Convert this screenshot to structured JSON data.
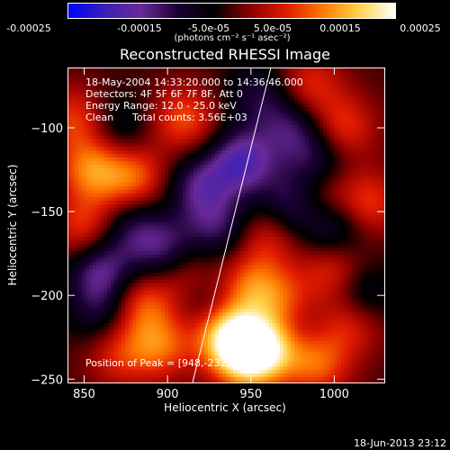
{
  "colorbar": {
    "ticks": [
      "-0.00025",
      "-0.00015",
      "-5.0e-05",
      "5.0e-05",
      "0.00015",
      "0.00025"
    ],
    "unit": "(photons cm⁻² s⁻¹ asec⁻²)",
    "range": [
      -0.00025,
      0.00025
    ],
    "colors": [
      "#0000ff",
      "#3a1fb8",
      "#6a2a9a",
      "#1a0033",
      "#000000",
      "#8a0000",
      "#e01a00",
      "#ff7a00",
      "#ffd24a",
      "#ffffff"
    ]
  },
  "chart_data": {
    "type": "heatmap",
    "title": "Reconstructed RHESSI Image",
    "xlabel": "Heliocentric X (arcsec)",
    "ylabel": "Heliocentric Y (arcsec)",
    "xlim": [
      840,
      1030
    ],
    "ylim": [
      -252,
      -64
    ],
    "x_ticks": [
      850,
      900,
      950,
      1000
    ],
    "y_ticks": [
      -100,
      -150,
      -200,
      -250
    ],
    "limb_line": [
      [
        915,
        -252
      ],
      [
        962,
        -64
      ]
    ],
    "peak": [
      948,
      -232
    ],
    "sources": [
      {
        "x": 948,
        "y": -235,
        "intensity": 0.00025
      },
      {
        "x": 935,
        "y": -222,
        "intensity": 0.00018
      },
      {
        "x": 965,
        "y": -230,
        "intensity": 0.00014
      },
      {
        "x": 990,
        "y": -240,
        "intensity": 0.00012
      },
      {
        "x": 895,
        "y": -230,
        "intensity": 0.00012
      },
      {
        "x": 970,
        "y": -205,
        "intensity": 0.0001
      },
      {
        "x": 1010,
        "y": -215,
        "intensity": 0.0001
      },
      {
        "x": 950,
        "y": -195,
        "intensity": 0.00012
      },
      {
        "x": 885,
        "y": -205,
        "intensity": 0.00011
      },
      {
        "x": 910,
        "y": -185,
        "intensity": 0.0001
      },
      {
        "x": 855,
        "y": -125,
        "intensity": 0.00014
      },
      {
        "x": 880,
        "y": -130,
        "intensity": 0.00012
      },
      {
        "x": 845,
        "y": -95,
        "intensity": 0.0001
      },
      {
        "x": 910,
        "y": -95,
        "intensity": 0.00011
      },
      {
        "x": 850,
        "y": -160,
        "intensity": 0.0001
      },
      {
        "x": 1005,
        "y": -100,
        "intensity": 0.0001
      },
      {
        "x": 1020,
        "y": -145,
        "intensity": 0.0001
      },
      {
        "x": 1000,
        "y": -185,
        "intensity": 0.0001
      },
      {
        "x": 990,
        "y": -140,
        "intensity": 9e-05
      },
      {
        "x": 985,
        "y": -75,
        "intensity": 9e-05
      },
      {
        "x": 960,
        "y": -165,
        "intensity": 8e-05
      },
      {
        "x": 870,
        "y": -235,
        "intensity": 8e-05
      },
      {
        "x": 920,
        "y": -135,
        "intensity": -0.00012
      },
      {
        "x": 945,
        "y": -120,
        "intensity": -0.00016
      },
      {
        "x": 900,
        "y": -175,
        "intensity": -0.00013
      },
      {
        "x": 930,
        "y": -160,
        "intensity": -0.0001
      },
      {
        "x": 975,
        "y": -100,
        "intensity": -0.0001
      },
      {
        "x": 860,
        "y": -185,
        "intensity": -0.00013
      },
      {
        "x": 1000,
        "y": -160,
        "intensity": -0.0001
      },
      {
        "x": 975,
        "y": -145,
        "intensity": -0.00012
      },
      {
        "x": 880,
        "y": -160,
        "intensity": -9e-05
      },
      {
        "x": 1015,
        "y": -200,
        "intensity": -0.0001
      },
      {
        "x": 975,
        "y": -220,
        "intensity": -8e-05
      },
      {
        "x": 925,
        "y": -205,
        "intensity": -7e-05
      },
      {
        "x": 860,
        "y": -210,
        "intensity": -8e-05
      },
      {
        "x": 990,
        "y": -120,
        "intensity": -9e-05
      },
      {
        "x": 955,
        "y": -80,
        "intensity": -8e-05
      },
      {
        "x": 870,
        "y": -100,
        "intensity": -7e-05
      }
    ]
  },
  "annotations": {
    "time": "18-May-2004 14:33:20.000 to 14:36:46.000",
    "detectors": "Detectors: 4F 5F 6F 7F 8F, Att 0",
    "energy": "Energy Range: 12.0 - 25.0 keV",
    "clean": "Clean",
    "counts": "Total counts: 3.56E+03",
    "peak": "Position of Peak = [948,-232]"
  },
  "footer": {
    "timestamp": "18-Jun-2013 23:12"
  }
}
